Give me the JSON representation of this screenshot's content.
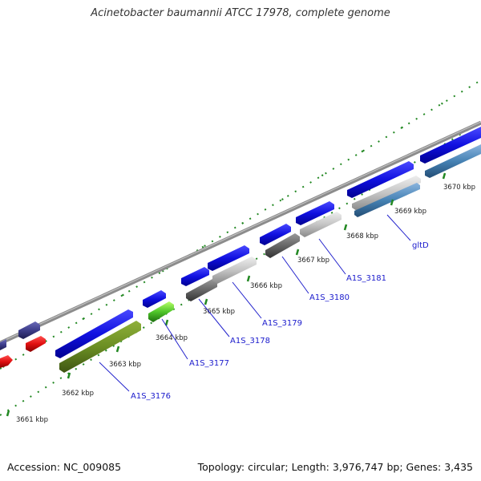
{
  "title": "Acinetobacter baumannii ATCC 17978, complete genome",
  "footer": {
    "accession": "Accession: NC_009085",
    "summary": "Topology: circular; Length: 3,976,747 bp; Genes: 3,435"
  },
  "scale_ticks": [
    "3661 kbp",
    "3662 kbp",
    "3663 kbp",
    "3664 kbp",
    "3665 kbp",
    "3666 kbp",
    "3667 kbp",
    "3668 kbp",
    "3669 kbp",
    "3670 kbp"
  ],
  "gene_labels": [
    "A1S_3176",
    "A1S_3177",
    "A1S_3178",
    "A1S_3179",
    "A1S_3180",
    "A1S_3181",
    "gltD"
  ],
  "colors": {
    "backbone": "#8c8c8c",
    "cds_forward": "#1010e0",
    "tick": "#228822",
    "label": "#1a1acc",
    "olive": "#6b8e23",
    "green": "#2e9a1e",
    "gray_dark": "#666666",
    "gray_light": "#bdbdbd",
    "steel_blue": "#4682b4",
    "purple": "#3d3d8a",
    "red": "#e01010"
  }
}
